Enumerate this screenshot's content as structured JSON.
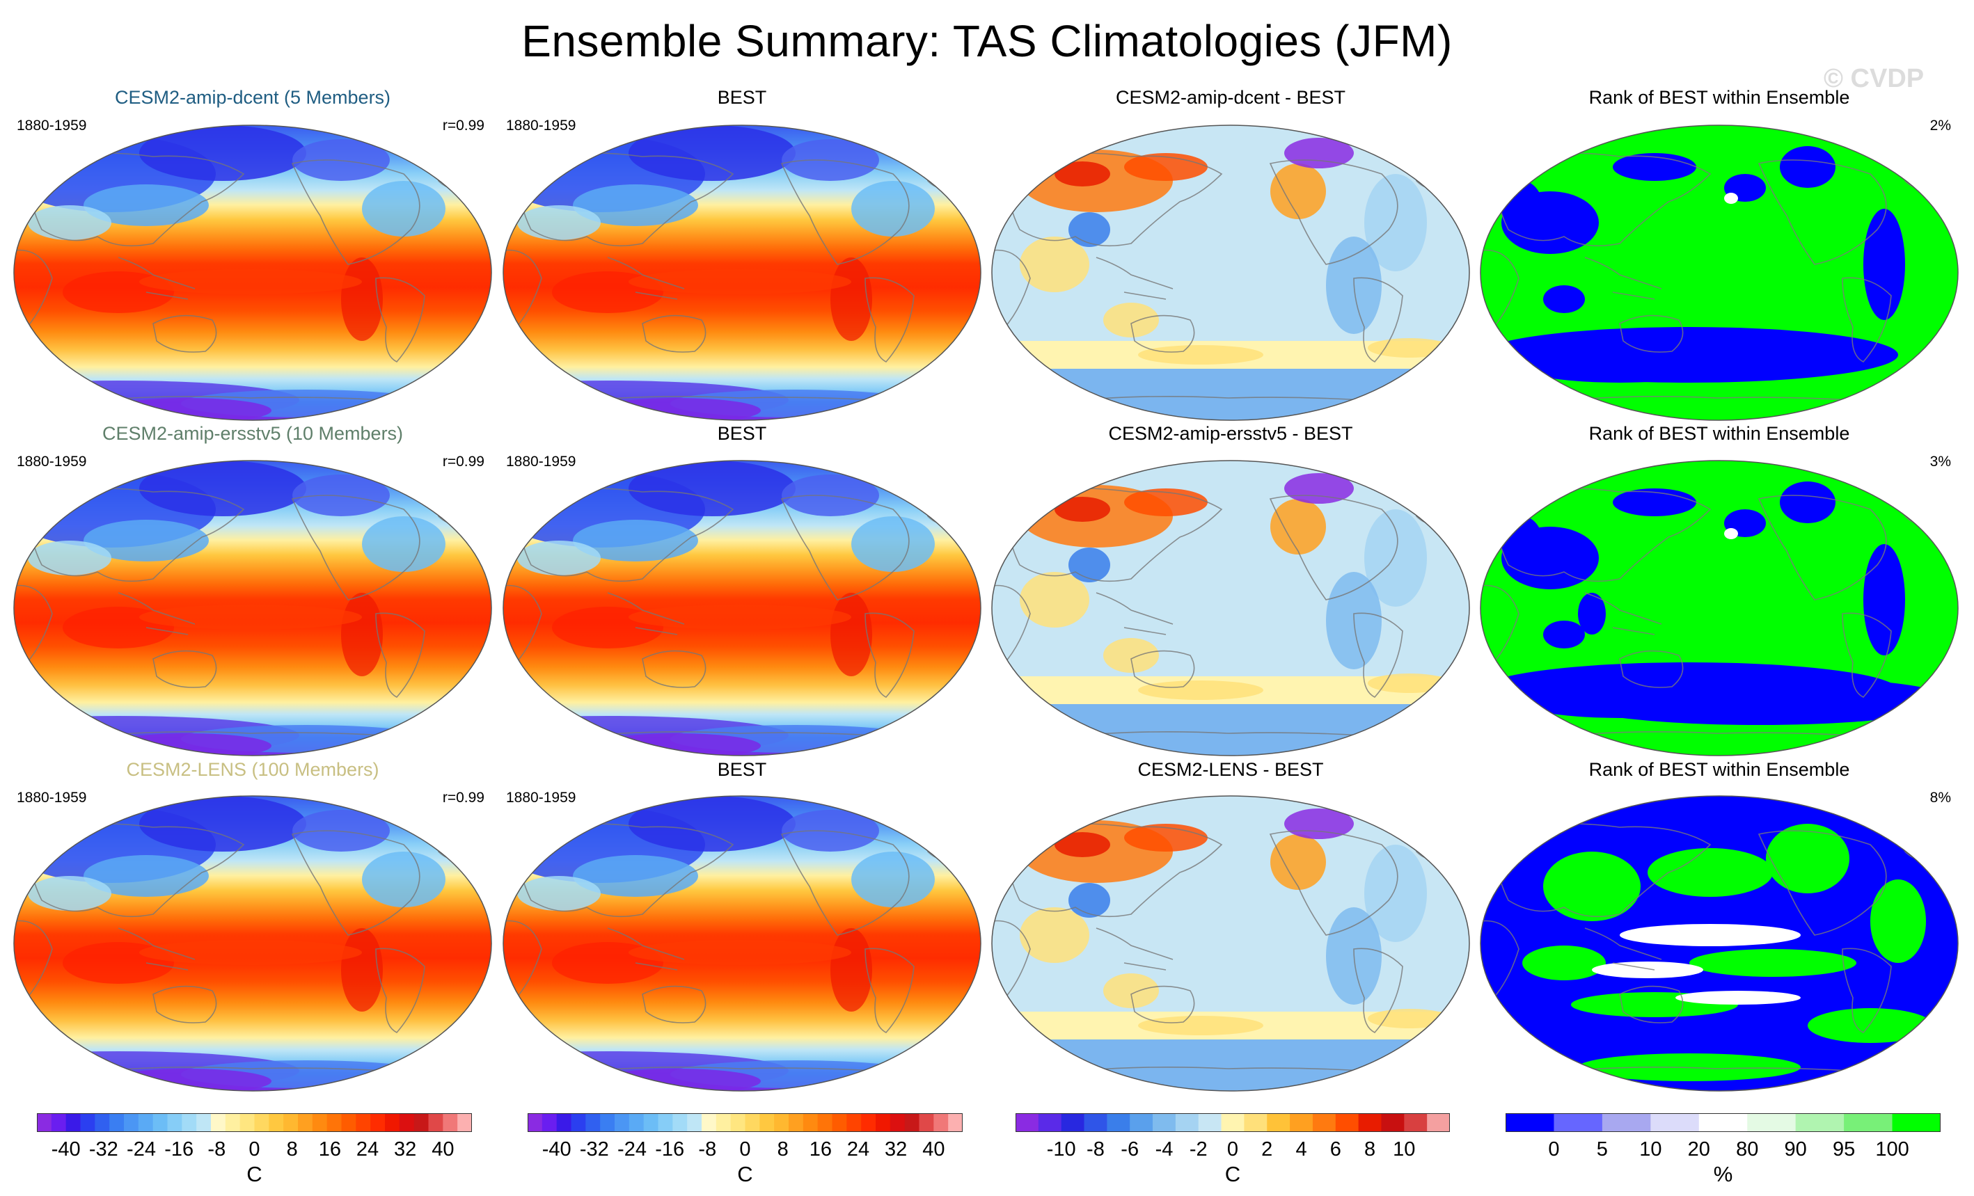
{
  "title": "Ensemble Summary: TAS Climatologies (JFM)",
  "watermark": "© CVDP",
  "chart_data": {
    "type": "heatmap",
    "projection": "Robinson, Pacific-centered global maps",
    "variable": "TAS",
    "season": "JFM",
    "rows": [
      {
        "ensemble": {
          "title": "CESM2-amip-dcent (5 Members)",
          "title_color": "#1f5d82",
          "period": "1880-1959",
          "stat": "r=0.99",
          "colorbar": "climatology"
        },
        "obs": {
          "title": "BEST",
          "period": "1880-1959",
          "colorbar": "climatology"
        },
        "diff": {
          "title": "CESM2-amip-dcent - BEST",
          "colorbar": "difference"
        },
        "rank": {
          "title": "Rank of BEST within Ensemble",
          "stat": "2%",
          "colorbar": "rank"
        }
      },
      {
        "ensemble": {
          "title": "CESM2-amip-ersstv5 (10 Members)",
          "title_color": "#5f7f6a",
          "period": "1880-1959",
          "stat": "r=0.99",
          "colorbar": "climatology"
        },
        "obs": {
          "title": "BEST",
          "period": "1880-1959",
          "colorbar": "climatology"
        },
        "diff": {
          "title": "CESM2-amip-ersstv5 - BEST",
          "colorbar": "difference"
        },
        "rank": {
          "title": "Rank of BEST within Ensemble",
          "stat": "3%",
          "colorbar": "rank"
        }
      },
      {
        "ensemble": {
          "title": "CESM2-LENS (100 Members)",
          "title_color": "#c8bf82",
          "period": "1880-1959",
          "stat": "r=0.99",
          "colorbar": "climatology"
        },
        "obs": {
          "title": "BEST",
          "period": "1880-1959",
          "colorbar": "climatology"
        },
        "diff": {
          "title": "CESM2-LENS - BEST",
          "colorbar": "difference"
        },
        "rank": {
          "title": "Rank of BEST within Ensemble",
          "stat": "8%",
          "colorbar": "rank"
        }
      }
    ],
    "colorbars": {
      "climatology": {
        "unit": "C",
        "tick_labels": [
          "-40",
          "-32",
          "-24",
          "-16",
          "-8",
          "0",
          "8",
          "16",
          "24",
          "32",
          "40"
        ],
        "colors": [
          "#8a2be2",
          "#6a1ef0",
          "#3a1ae8",
          "#2b3ff0",
          "#3060f0",
          "#3a7ef2",
          "#4b96f4",
          "#5aaaf5",
          "#6cbdf6",
          "#86cdf7",
          "#a2dbf7",
          "#bfe6f6",
          "#fff8c8",
          "#fff0a0",
          "#ffe680",
          "#ffd860",
          "#ffc840",
          "#ffb830",
          "#ffa020",
          "#ff8a10",
          "#ff7408",
          "#ff5c00",
          "#ff4400",
          "#ff2c00",
          "#f01800",
          "#dc1010",
          "#c81818",
          "#e04848",
          "#f07878",
          "#fcb0b0"
        ]
      },
      "difference": {
        "unit": "C",
        "tick_labels": [
          "-10",
          "-8",
          "-6",
          "-4",
          "-2",
          "0",
          "2",
          "4",
          "6",
          "8",
          "10"
        ],
        "colors": [
          "#8a2be2",
          "#5a2ae8",
          "#2828e0",
          "#2f55e8",
          "#3a7eea",
          "#5aa0ec",
          "#7fbbee",
          "#a5d3f2",
          "#c8e6f4",
          "#fff4b0",
          "#ffe07a",
          "#ffc238",
          "#ffa020",
          "#ff7a10",
          "#ff4e00",
          "#e81c00",
          "#c81010",
          "#d84040",
          "#f4a0a0"
        ]
      },
      "rank": {
        "unit": "%",
        "tick_labels": [
          "0",
          "5",
          "10",
          "20",
          "80",
          "90",
          "95",
          "100"
        ],
        "colors": [
          "#0000ff",
          "#6666ff",
          "#a8a8f0",
          "#dcdcfa",
          "#ffffff",
          "#e4fae4",
          "#b0f4b0",
          "#78f078",
          "#00ff00"
        ]
      }
    }
  }
}
